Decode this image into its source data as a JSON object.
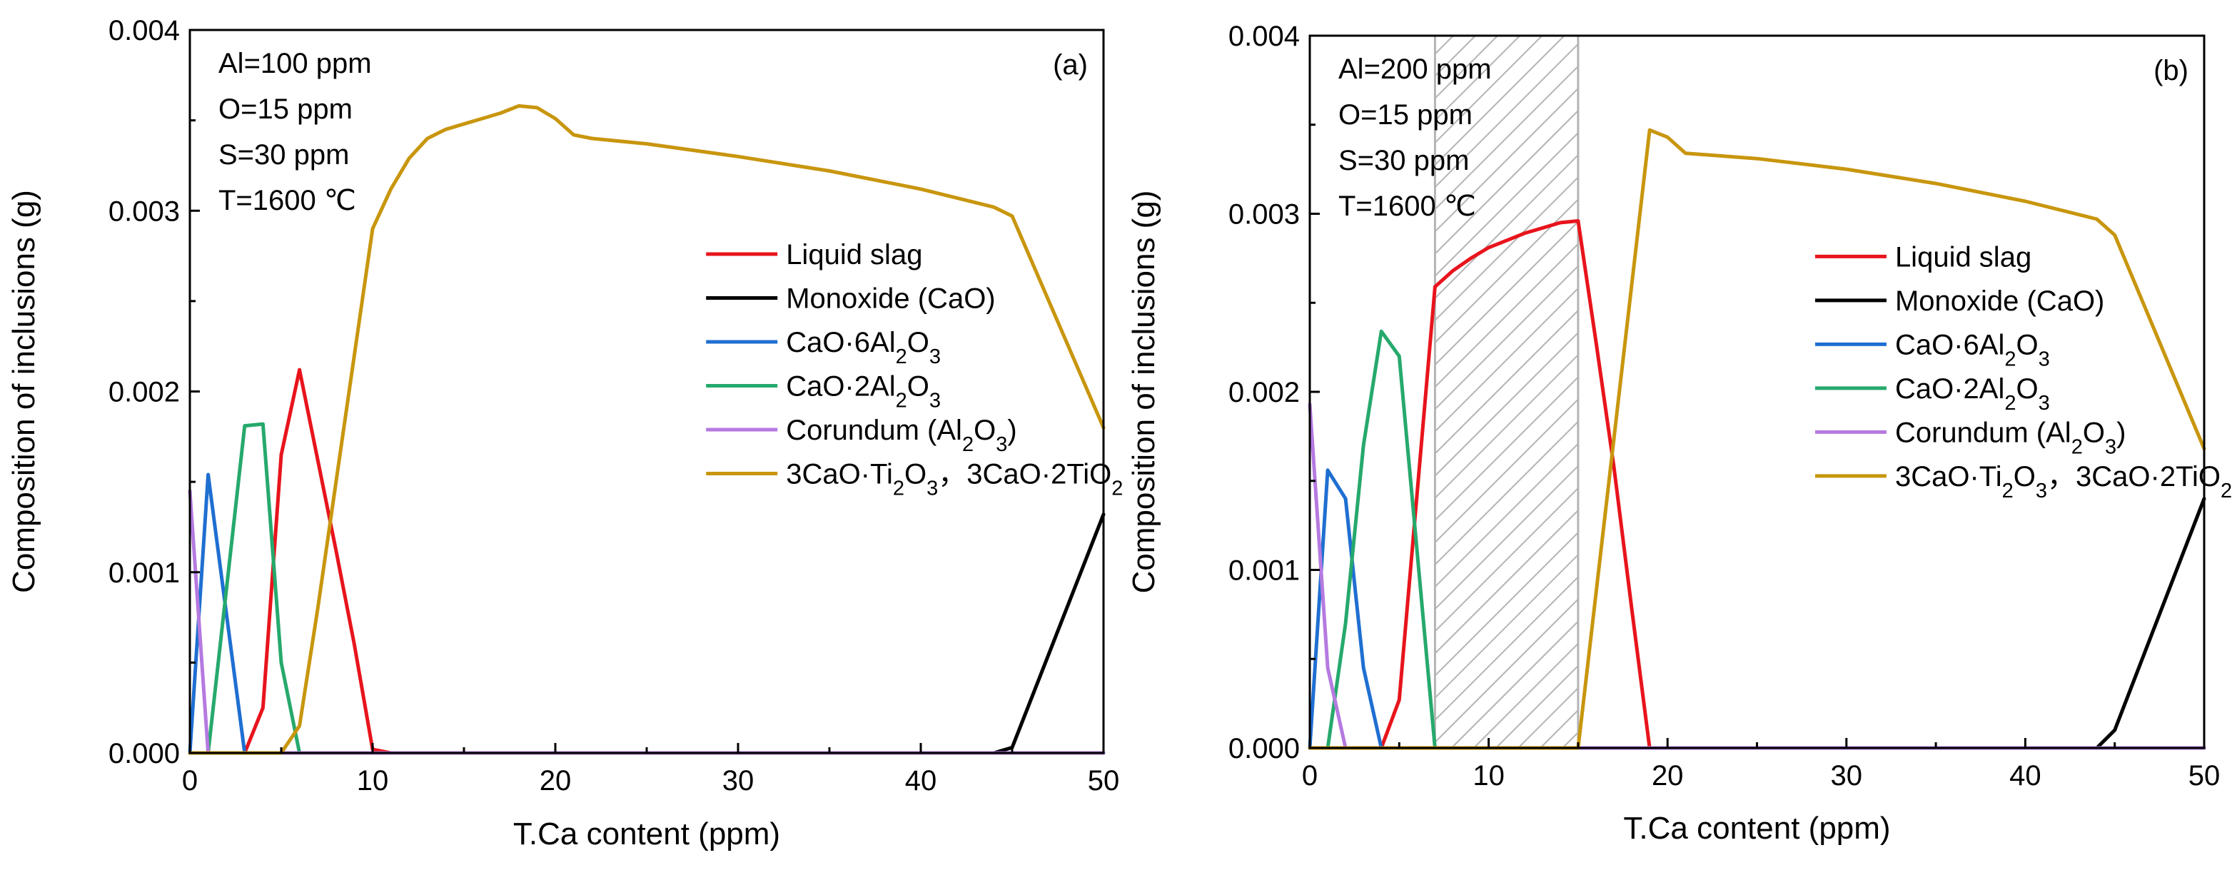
{
  "chart_data": [
    {
      "type": "line",
      "panel_label": "(a)",
      "xlabel": "T.Ca content (ppm)",
      "ylabel": "Composition of inclusions (g)",
      "xlim": [
        0,
        50
      ],
      "ylim": [
        0,
        0.004
      ],
      "xticks": [
        0,
        10,
        20,
        30,
        40,
        50
      ],
      "yticks": [
        0,
        0.001,
        0.002,
        0.003,
        0.004
      ],
      "xtick_labels": [
        "0",
        "10",
        "20",
        "30",
        "40",
        "50"
      ],
      "ytick_labels": [
        "0.000",
        "0.001",
        "0.002",
        "0.003",
        "0.004"
      ],
      "conditions": [
        "Al=100 ppm",
        "O=15 ppm",
        "S=30 ppm",
        "T=1600 ℃"
      ],
      "legend_position": "center-right",
      "shaded_region": null,
      "series": [
        {
          "key": "liquid",
          "name": "Liquid slag",
          "color": "#e8141c",
          "x": [
            0,
            3,
            4,
            5,
            6,
            7,
            8,
            9,
            10,
            11,
            50
          ],
          "y": [
            0,
            0,
            0.00025,
            0.00165,
            0.00212,
            0.00162,
            0.00112,
            0.0006,
            2e-05,
            0,
            0
          ]
        },
        {
          "key": "monoxide",
          "name": "Monoxide (CaO)",
          "color": "#000000",
          "x": [
            0,
            44,
            45,
            50
          ],
          "y": [
            0,
            0,
            3e-05,
            0.00132
          ]
        },
        {
          "key": "ca6al",
          "name": "CaO·6Al2O3",
          "color": "#1f6fd1",
          "x": [
            0,
            1,
            3,
            50
          ],
          "y": [
            0,
            0.00154,
            0,
            0
          ]
        },
        {
          "key": "ca2al",
          "name": "CaO·2Al2O3",
          "color": "#26a96c",
          "x": [
            0,
            1,
            3,
            4,
            5,
            6,
            50
          ],
          "y": [
            0,
            0,
            0.00181,
            0.00182,
            0.0005,
            0,
            0
          ]
        },
        {
          "key": "corundum",
          "name": "Corundum (Al2O3)",
          "color": "#b57ae0",
          "x": [
            0,
            1,
            50
          ],
          "y": [
            0.00145,
            0,
            0
          ]
        },
        {
          "key": "titanate",
          "name": "3CaO·Ti2O3，3CaO·2TiO2",
          "color": "#c8960e",
          "x": [
            0,
            5,
            6,
            7,
            8,
            9,
            10,
            11,
            12,
            13,
            14,
            15,
            16,
            17,
            18,
            19,
            20,
            21,
            22,
            25,
            30,
            35,
            40,
            44,
            45,
            50
          ],
          "y": [
            0,
            0,
            0.00015,
            0.0008,
            0.0015,
            0.0022,
            0.0029,
            0.00312,
            0.00329,
            0.0034,
            0.00345,
            0.00348,
            0.00351,
            0.00354,
            0.00358,
            0.00357,
            0.00351,
            0.00342,
            0.0034,
            0.00337,
            0.0033,
            0.00322,
            0.00312,
            0.00302,
            0.00297,
            0.0018
          ]
        }
      ]
    },
    {
      "type": "line",
      "panel_label": "(b)",
      "xlabel": "T.Ca content (ppm)",
      "ylabel": "Composition of inclusions (g)",
      "xlim": [
        0,
        50
      ],
      "ylim": [
        0,
        0.004
      ],
      "xticks": [
        0,
        10,
        20,
        30,
        40,
        50
      ],
      "yticks": [
        0,
        0.001,
        0.002,
        0.003,
        0.004
      ],
      "xtick_labels": [
        "0",
        "10",
        "20",
        "30",
        "40",
        "50"
      ],
      "ytick_labels": [
        "0.000",
        "0.001",
        "0.002",
        "0.003",
        "0.004"
      ],
      "conditions": [
        "Al=200 ppm",
        "O=15 ppm",
        "S=30 ppm",
        "T=1600 ℃"
      ],
      "legend_position": "center-right",
      "shaded_region": {
        "x": [
          7,
          15
        ],
        "style": "hatched-gray"
      },
      "series": [
        {
          "key": "liquid",
          "name": "Liquid slag",
          "color": "#e8141c",
          "x": [
            0,
            4,
            5,
            7,
            8,
            9,
            10,
            11,
            12,
            13,
            14,
            15,
            16,
            17,
            18,
            19,
            50
          ],
          "y": [
            0,
            0,
            0.00027,
            0.00259,
            0.00268,
            0.00275,
            0.00281,
            0.00285,
            0.00289,
            0.00292,
            0.00295,
            0.00296,
            0.00228,
            0.00158,
            0.00078,
            0,
            0
          ]
        },
        {
          "key": "monoxide",
          "name": "Monoxide (CaO)",
          "color": "#000000",
          "x": [
            0,
            44,
            45,
            50
          ],
          "y": [
            0,
            0,
            0.0001,
            0.0014
          ]
        },
        {
          "key": "ca6al",
          "name": "CaO·6Al2O3",
          "color": "#1f6fd1",
          "x": [
            0,
            1,
            2,
            3,
            4,
            50
          ],
          "y": [
            0,
            0.00156,
            0.0014,
            0.00045,
            0,
            0
          ]
        },
        {
          "key": "ca2al",
          "name": "CaO·2Al2O3",
          "color": "#26a96c",
          "x": [
            0,
            1,
            2,
            3,
            4,
            5,
            6,
            7,
            50
          ],
          "y": [
            0,
            0,
            0.0007,
            0.0017,
            0.00234,
            0.0022,
            0.0011,
            0,
            0
          ]
        },
        {
          "key": "corundum",
          "name": "Corundum (Al2O3)",
          "color": "#b57ae0",
          "x": [
            0,
            1,
            2,
            50
          ],
          "y": [
            0.00193,
            0.00045,
            0,
            0
          ]
        },
        {
          "key": "titanate",
          "name": "3CaO·Ti2O3，3CaO·2TiO2",
          "color": "#c8960e",
          "x": [
            0,
            15,
            19,
            20,
            21,
            25,
            30,
            35,
            40,
            44,
            45,
            50
          ],
          "y": [
            0,
            0,
            0.00347,
            0.00343,
            0.00334,
            0.00331,
            0.00325,
            0.00317,
            0.00307,
            0.00297,
            0.00288,
            0.00168
          ]
        }
      ]
    }
  ]
}
